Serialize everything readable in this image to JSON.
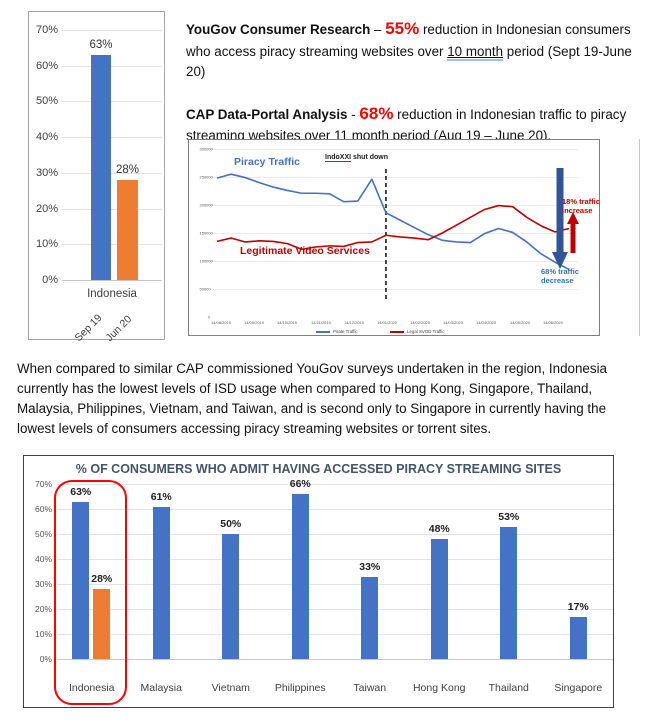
{
  "colors": {
    "bar_blue": "#4472C4",
    "bar_orange": "#ED7D31",
    "line_blue": "#4472C4",
    "line_red": "#C00000",
    "accent_red": "#FF0000",
    "dark_red": "#C00000",
    "annotation_blue": "#2E75B6",
    "arrow_blue": "#2F5597",
    "title_navy": "#44546A"
  },
  "text": {
    "yougov": {
      "bold": "YouGov Consumer Research",
      "sep": " – ",
      "pct": "55%",
      "text_a": " reduction in Indonesian consumers who access piracy streaming websites over ",
      "underline": "10 month",
      "text_b": " period (Sept 19-June 20)"
    },
    "cap": {
      "bold": "CAP Data-Portal Analysis",
      "sep": " - ",
      "pct": "68%",
      "text_a": " reduction in Indonesian traffic to piracy streaming websites over ",
      "underline": "11 month",
      "text_b": " period (Aug 19 – June 20)."
    },
    "paragraph": "When compared to similar CAP commissioned YouGov surveys undertaken in the region, Indonesia currently has the lowest levels of ISD usage when compared to Hong Kong, Singapore, Thailand, Malaysia, Philippines, Vietnam, and Taiwan, and is second only to Singapore in currently having the lowest levels of consumers accessing piracy streaming websites or torrent sites."
  },
  "chart_data": [
    {
      "id": "indonesia-reduction-bar",
      "type": "bar",
      "group_label": "Indonesia",
      "categories": [
        "Sep 19",
        "Jun 20"
      ],
      "values": [
        63,
        28
      ],
      "data_labels": [
        "63%",
        "28%"
      ],
      "bar_colors": [
        "#4472C4",
        "#ED7D31"
      ],
      "yticks": [
        "70%",
        "60%",
        "50%",
        "40%",
        "30%",
        "20%",
        "10%",
        "0%"
      ],
      "ylim": [
        0,
        70
      ],
      "grid": true
    },
    {
      "id": "traffic-line",
      "type": "line",
      "ylim": [
        0,
        300000
      ],
      "yticks": [
        "300000",
        "250000",
        "200000",
        "150000",
        "100000",
        "50000",
        "0"
      ],
      "x_ticks": [
        "14/08/2019",
        "14/09/2019",
        "14/10/2019",
        "14/11/2019",
        "14/12/2019",
        "14/01/2020",
        "14/02/2020",
        "14/03/2020",
        "14/04/2020",
        "14/05/2020",
        "14/06/2020"
      ],
      "series": [
        {
          "name": "Pirate Traffic",
          "color": "#4472C4",
          "values": [
            248000,
            255000,
            249000,
            240000,
            232000,
            226000,
            221000,
            221000,
            220000,
            206000,
            207000,
            246000,
            186000,
            173000,
            160000,
            147000,
            137000,
            134000,
            133000,
            149000,
            158000,
            151000,
            134000,
            113000,
            98000,
            85000
          ]
        },
        {
          "name": "Legal SVOD Traffic",
          "color": "#C00000",
          "values": [
            135000,
            141000,
            134000,
            136000,
            135000,
            131000,
            121000,
            125000,
            127000,
            126000,
            133000,
            134000,
            146000,
            143000,
            141000,
            138000,
            150000,
            164000,
            178000,
            192000,
            199000,
            197000,
            178000,
            163000,
            152000,
            158000
          ]
        }
      ],
      "legend": [
        "Pirate Traffic",
        "Legal SVOD Traffic"
      ],
      "legend_position": "bottom",
      "grid": true,
      "annotations": {
        "piracy_label": "Piracy Traffic",
        "legit_label": "Legitimate Video Services",
        "event_pre": "IndoXXI",
        "event_post": " shut down",
        "event_x_index": 12,
        "increase_label": "18% traffic increase",
        "decrease_label": "68% traffic decrease"
      }
    },
    {
      "id": "regional-piracy-bar",
      "type": "bar",
      "title": "% OF CONSUMERS WHO ADMIT HAVING ACCESSED PIRACY STREAMING SITES",
      "yticks": [
        "70%",
        "60%",
        "50%",
        "40%",
        "30%",
        "20%",
        "10%",
        "0%"
      ],
      "ylim": [
        0,
        70
      ],
      "grid": true,
      "highlight": "Indonesia",
      "groups": [
        {
          "label": "Indonesia",
          "bars": [
            {
              "value": 63,
              "label": "63%",
              "color": "#4472C4"
            },
            {
              "value": 28,
              "label": "28%",
              "color": "#ED7D31"
            }
          ]
        },
        {
          "label": "Malaysia",
          "bars": [
            {
              "value": 61,
              "label": "61%",
              "color": "#4472C4"
            }
          ]
        },
        {
          "label": "Vietnam",
          "bars": [
            {
              "value": 50,
              "label": "50%",
              "color": "#4472C4"
            }
          ]
        },
        {
          "label": "Philippines",
          "bars": [
            {
              "value": 66,
              "label": "66%",
              "color": "#4472C4"
            }
          ]
        },
        {
          "label": "Taiwan",
          "bars": [
            {
              "value": 33,
              "label": "33%",
              "color": "#4472C4"
            }
          ]
        },
        {
          "label": "Hong Kong",
          "bars": [
            {
              "value": 48,
              "label": "48%",
              "color": "#4472C4"
            }
          ]
        },
        {
          "label": "Thailand",
          "bars": [
            {
              "value": 53,
              "label": "53%",
              "color": "#4472C4"
            }
          ]
        },
        {
          "label": "Singapore",
          "bars": [
            {
              "value": 17,
              "label": "17%",
              "color": "#4472C4"
            }
          ]
        }
      ]
    }
  ]
}
